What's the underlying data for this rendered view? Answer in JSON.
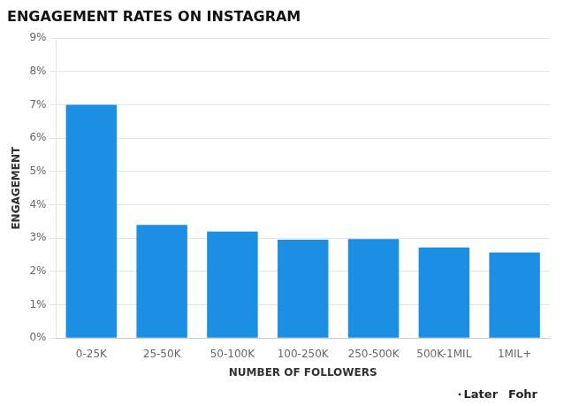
{
  "chart_data": {
    "type": "bar",
    "title": "ENGAGEMENT RATES ON INSTAGRAM",
    "categories": [
      "0-25K",
      "25-50K",
      "50-100K",
      "100-250K",
      "250-500K",
      "500K-1MIL",
      "1MIL+"
    ],
    "values": [
      7.0,
      3.4,
      3.2,
      2.95,
      2.97,
      2.72,
      2.57
    ],
    "color": "#1a8fe3",
    "xlabel": "NUMBER OF FOLLOWERS",
    "ylabel": "ENGAGEMENT",
    "ylim": [
      0,
      9
    ],
    "yticks": [
      {
        "value": 0,
        "label": "0%"
      },
      {
        "value": 1,
        "label": "1%"
      },
      {
        "value": 2,
        "label": "2%"
      },
      {
        "value": 3,
        "label": "3%"
      },
      {
        "value": 4,
        "label": "4%"
      },
      {
        "value": 5,
        "label": "5%"
      },
      {
        "value": 6,
        "label": "6%"
      },
      {
        "value": 7,
        "label": "7%"
      },
      {
        "value": 8,
        "label": "8%"
      },
      {
        "value": 9,
        "label": "9%"
      }
    ],
    "grid": true,
    "annotations": [
      "·",
      "Later",
      "Fohr"
    ]
  }
}
